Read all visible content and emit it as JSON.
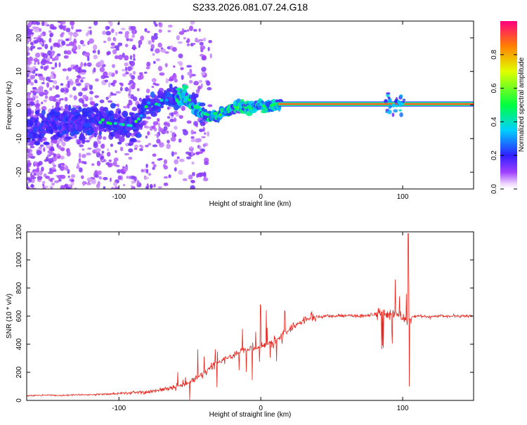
{
  "title": "S233.2026.081.07.24.G18",
  "colors": {
    "plot_line": "#e8251c",
    "axis": "#000000",
    "background": "#ffffff"
  },
  "chart_data": [
    {
      "type": "heatmap",
      "xlabel": "Height of straight line (km)",
      "ylabel": "Frequency (Hz)",
      "xlim": [
        -165,
        150
      ],
      "ylim": [
        -25,
        25
      ],
      "xticks": [
        -100,
        0,
        100
      ],
      "yticks": [
        -20,
        -10,
        0,
        10,
        20
      ],
      "ridge_points": [
        {
          "x": -150,
          "y": -6
        },
        {
          "x": -140,
          "y": -5
        },
        {
          "x": -130,
          "y": -6
        },
        {
          "x": -120,
          "y": -5
        },
        {
          "x": -110,
          "y": -5
        },
        {
          "x": -100,
          "y": -6
        },
        {
          "x": -90,
          "y": -6
        },
        {
          "x": -80,
          "y": 0
        },
        {
          "x": -70,
          "y": 1
        },
        {
          "x": -60,
          "y": 2
        },
        {
          "x": -55,
          "y": 3
        },
        {
          "x": -50,
          "y": 1
        },
        {
          "x": -45,
          "y": -1
        },
        {
          "x": -40,
          "y": -3
        },
        {
          "x": -35,
          "y": -3.5
        },
        {
          "x": -30,
          "y": -3
        },
        {
          "x": -25,
          "y": -2
        },
        {
          "x": -20,
          "y": -1
        },
        {
          "x": -15,
          "y": -0.5
        },
        {
          "x": -10,
          "y": -1
        },
        {
          "x": -5,
          "y": -1
        },
        {
          "x": 0,
          "y": 0
        },
        {
          "x": 5,
          "y": -0.5
        },
        {
          "x": 10,
          "y": 0
        },
        {
          "x": 15,
          "y": 0.3
        },
        {
          "x": 150,
          "y": 0.3
        }
      ],
      "steady_tone": {
        "x_start": 12,
        "x_end": 150,
        "frequency": 0.3,
        "amplitude": 1.0
      },
      "colorbar": {
        "label": "Normalized spectral amplitude",
        "range": [
          0,
          1
        ],
        "ticks": [
          "0.0",
          "0.2",
          "0.4",
          "0.6",
          "0.8"
        ]
      }
    },
    {
      "type": "line",
      "xlabel": "Height of straight line (km)",
      "ylabel": "SNR (10 * v/v)",
      "xlim": [
        -165,
        150
      ],
      "ylim": [
        0,
        1200
      ],
      "xticks": [
        -100,
        0,
        100
      ],
      "yticks": [
        0,
        200,
        400,
        600,
        800,
        1000,
        1200
      ],
      "series": [
        {
          "name": "SNR",
          "x": [
            -165,
            -150,
            -140,
            -130,
            -120,
            -110,
            -100,
            -90,
            -80,
            -70,
            -60,
            -55,
            -50,
            -45,
            -40,
            -35,
            -30,
            -25,
            -20,
            -15,
            -10,
            -5,
            0,
            5,
            10,
            15,
            20,
            25,
            30,
            35,
            40,
            50,
            60,
            70,
            80,
            85,
            90,
            95,
            100,
            103,
            105,
            110,
            120,
            130,
            140,
            150
          ],
          "values": [
            35,
            38,
            35,
            40,
            40,
            45,
            50,
            55,
            60,
            75,
            95,
            110,
            130,
            160,
            200,
            240,
            270,
            300,
            320,
            340,
            360,
            370,
            380,
            400,
            430,
            460,
            500,
            540,
            570,
            585,
            595,
            600,
            605,
            600,
            610,
            620,
            620,
            610,
            600,
            560,
            590,
            600,
            595,
            600,
            600,
            600
          ]
        }
      ]
    }
  ]
}
